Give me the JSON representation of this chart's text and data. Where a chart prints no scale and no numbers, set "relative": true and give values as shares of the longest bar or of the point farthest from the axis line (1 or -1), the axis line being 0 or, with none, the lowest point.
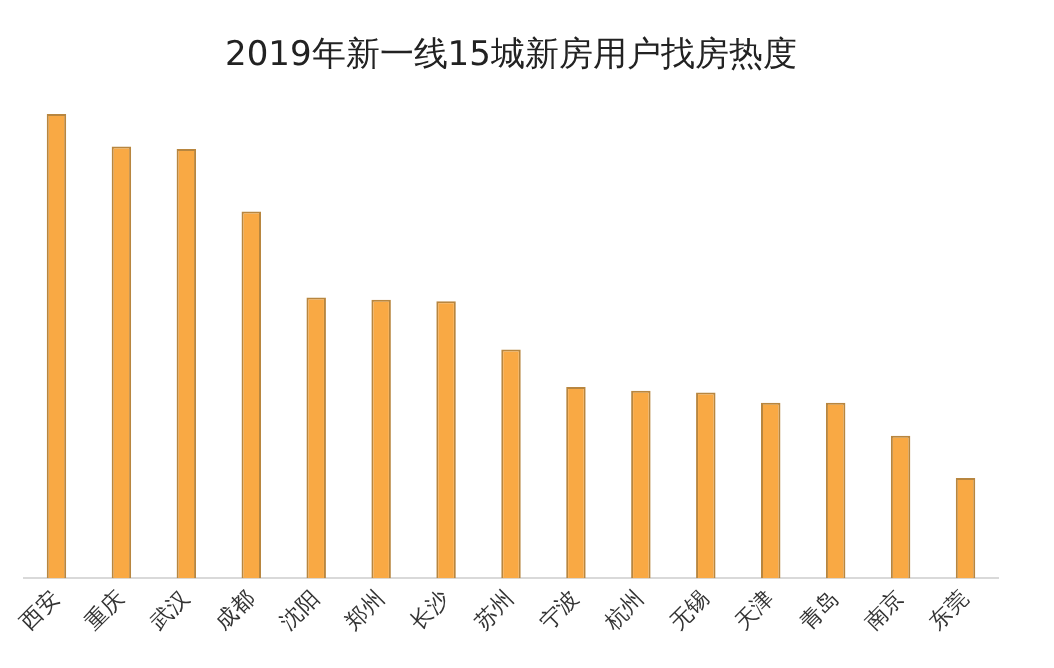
{
  "chart_data": {
    "type": "bar",
    "title": "2019年新一线15城新房用户找房热度",
    "relative": true,
    "categories": [
      "西安",
      "重庆",
      "武汉",
      "成都",
      "沈阳",
      "郑州",
      "长沙",
      "苏州",
      "宁波",
      "杭州",
      "无锡",
      "天津",
      "青岛",
      "南京",
      "东莞"
    ],
    "values": [
      1,
      0.93,
      0.925,
      0.79,
      0.605,
      0.6,
      0.597,
      0.493,
      0.412,
      0.404,
      0.4,
      0.378,
      0.378,
      0.307,
      0.216
    ],
    "color": "#f9a944",
    "grid": false,
    "legend": false
  }
}
